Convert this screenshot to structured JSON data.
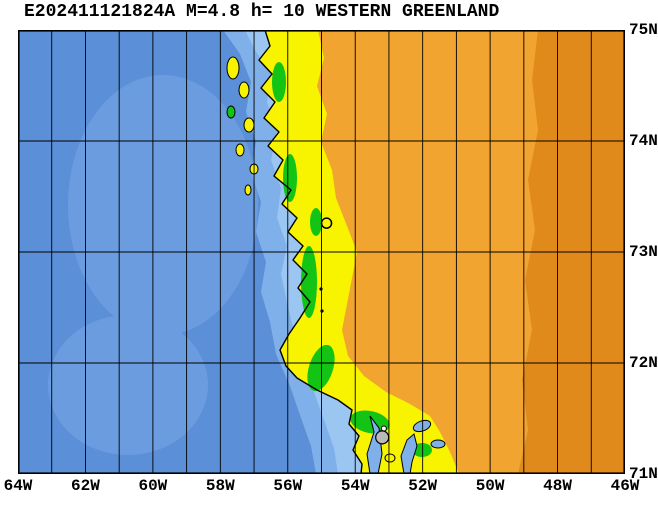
{
  "title": "E202411121824A M=4.8 h= 10 WESTERN GREENLAND",
  "event": {
    "event_id": "E202411121824A",
    "magnitude": "M=4.8",
    "depth": "h= 10",
    "region": "WESTERN GREENLAND"
  },
  "map": {
    "lon_labels": [
      "64W",
      "62W",
      "60W",
      "58W",
      "56W",
      "54W",
      "52W",
      "50W",
      "48W",
      "46W"
    ],
    "lat_labels": [
      "75N",
      "74N",
      "73N",
      "72N",
      "71N"
    ],
    "lon_min_w": 64,
    "lon_max_w": 46,
    "lat_min_n": 71,
    "lat_max_n": 75,
    "grid_step_deg": 1,
    "colors": {
      "ocean": "#5b8fd8",
      "ocean_light": "#6b9ce0",
      "ocean_shelf": "#7fb0ea",
      "ocean_shallow": "#9cc6f2",
      "land_low": "#f8f400",
      "land_mid": "#14c414",
      "land_high": "#f2a430",
      "land_higher": "#e08a1c",
      "marker_gray": "#b9b9b9",
      "grid": "#000000"
    },
    "markers": [
      {
        "name": "epicenter",
        "lon_w": 54.85,
        "lat_n": 73.26,
        "style": "open-circle"
      },
      {
        "name": "tiny-ring",
        "lon_w": 53.15,
        "lat_n": 71.41,
        "style": "tiny-open-circle"
      },
      {
        "name": "centroid-beachball",
        "lon_w": 53.2,
        "lat_n": 71.33,
        "style": "gray-filled-circle"
      }
    ]
  }
}
